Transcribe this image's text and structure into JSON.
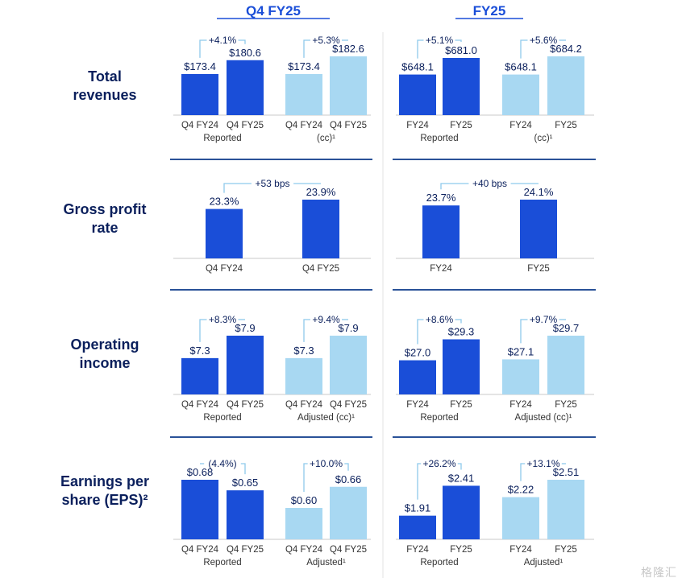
{
  "colors": {
    "navy": "#0a1f5c",
    "blue": "#1a4ed8",
    "light_blue": "#a8d8f2",
    "bracket": "#8ec9ec",
    "separator": "#2a5298",
    "axis_line": "#c9c9c9",
    "text": "#333333"
  },
  "chart_data": {
    "type": "bar",
    "column_headers": [
      "Q4 FY25",
      "FY25"
    ],
    "rows": [
      {
        "row_title": [
          "Total",
          "revenues"
        ],
        "panels": [
          {
            "groups": [
              {
                "categories": [
                  "Q4 FY24",
                  "Q4 FY25"
                ],
                "values": [
                  173.4,
                  180.6
                ],
                "labels": [
                  "$173.4",
                  "$180.6"
                ],
                "style": "reported",
                "change": "+4.1%",
                "caption": "Reported"
              },
              {
                "categories": [
                  "Q4 FY24",
                  "Q4 FY25"
                ],
                "values": [
                  173.4,
                  182.6
                ],
                "labels": [
                  "$173.4",
                  "$182.6"
                ],
                "style": "adjusted",
                "change": "+5.3%",
                "caption": "(cc)¹"
              }
            ]
          },
          {
            "groups": [
              {
                "categories": [
                  "FY24",
                  "FY25"
                ],
                "values": [
                  648.1,
                  681.0
                ],
                "labels": [
                  "$648.1",
                  "$681.0"
                ],
                "style": "reported",
                "change": "+5.1%",
                "caption": "Reported"
              },
              {
                "categories": [
                  "FY24",
                  "FY25"
                ],
                "values": [
                  648.1,
                  684.2
                ],
                "labels": [
                  "$648.1",
                  "$684.2"
                ],
                "style": "adjusted",
                "change": "+5.6%",
                "caption": "(cc)¹"
              }
            ]
          }
        ]
      },
      {
        "row_title": [
          "Gross profit",
          "rate"
        ],
        "panels": [
          {
            "groups": [
              {
                "categories": [
                  "Q4 FY24",
                  "Q4 FY25"
                ],
                "values": [
                  23.3,
                  23.9
                ],
                "labels": [
                  "23.3%",
                  "23.9%"
                ],
                "style": "reported",
                "change": "+53 bps",
                "caption": ""
              }
            ]
          },
          {
            "groups": [
              {
                "categories": [
                  "FY24",
                  "FY25"
                ],
                "values": [
                  23.7,
                  24.1
                ],
                "labels": [
                  "23.7%",
                  "24.1%"
                ],
                "style": "reported",
                "change": "+40 bps",
                "caption": ""
              }
            ]
          }
        ]
      },
      {
        "row_title": [
          "Operating",
          "income"
        ],
        "panels": [
          {
            "groups": [
              {
                "categories": [
                  "Q4 FY24",
                  "Q4 FY25"
                ],
                "values": [
                  7.3,
                  7.9
                ],
                "labels": [
                  "$7.3",
                  "$7.9"
                ],
                "style": "reported",
                "change": "+8.3%",
                "caption": "Reported"
              },
              {
                "categories": [
                  "Q4 FY24",
                  "Q4 FY25"
                ],
                "values": [
                  7.3,
                  7.9
                ],
                "labels": [
                  "$7.3",
                  "$7.9"
                ],
                "style": "adjusted",
                "change": "+9.4%",
                "caption": "Adjusted (cc)¹"
              }
            ]
          },
          {
            "groups": [
              {
                "categories": [
                  "FY24",
                  "FY25"
                ],
                "values": [
                  27.0,
                  29.3
                ],
                "labels": [
                  "$27.0",
                  "$29.3"
                ],
                "style": "reported",
                "change": "+8.6%",
                "caption": "Reported"
              },
              {
                "categories": [
                  "FY24",
                  "FY25"
                ],
                "values": [
                  27.1,
                  29.7
                ],
                "labels": [
                  "$27.1",
                  "$29.7"
                ],
                "style": "adjusted",
                "change": "+9.7%",
                "caption": "Adjusted (cc)¹"
              }
            ]
          }
        ]
      },
      {
        "row_title": [
          "Earnings per",
          "share (EPS)²"
        ],
        "panels": [
          {
            "groups": [
              {
                "categories": [
                  "Q4 FY24",
                  "Q4 FY25"
                ],
                "values": [
                  0.68,
                  0.65
                ],
                "labels": [
                  "$0.68",
                  "$0.65"
                ],
                "style": "reported",
                "change": "(4.4%)",
                "caption": "Reported"
              },
              {
                "categories": [
                  "Q4 FY24",
                  "Q4 FY25"
                ],
                "values": [
                  0.6,
                  0.66
                ],
                "labels": [
                  "$0.60",
                  "$0.66"
                ],
                "style": "adjusted",
                "change": "+10.0%",
                "caption": "Adjusted¹"
              }
            ]
          },
          {
            "groups": [
              {
                "categories": [
                  "FY24",
                  "FY25"
                ],
                "values": [
                  1.91,
                  2.41
                ],
                "labels": [
                  "$1.91",
                  "$2.41"
                ],
                "style": "reported",
                "change": "+26.2%",
                "caption": "Reported"
              },
              {
                "categories": [
                  "FY24",
                  "FY25"
                ],
                "values": [
                  2.22,
                  2.51
                ],
                "labels": [
                  "$2.22",
                  "$2.51"
                ],
                "style": "adjusted",
                "change": "+13.1%",
                "caption": "Adjusted¹"
              }
            ]
          }
        ]
      }
    ]
  },
  "watermark": "格隆汇"
}
